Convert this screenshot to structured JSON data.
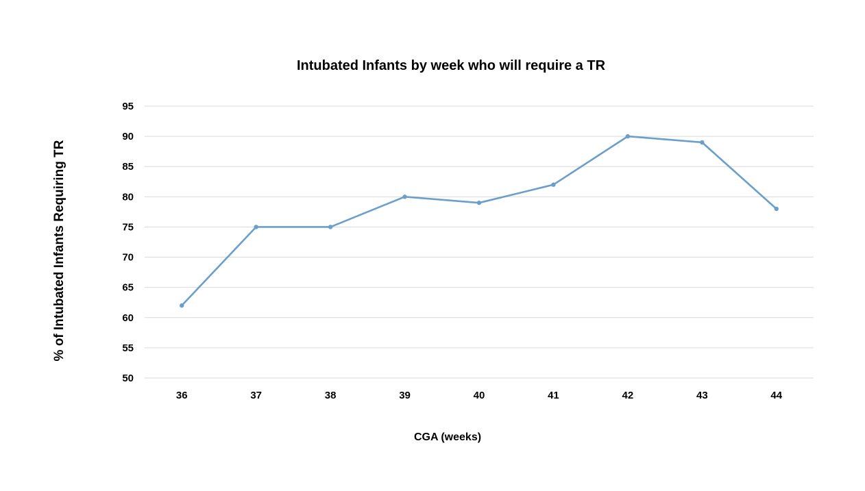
{
  "chart_data": {
    "type": "line",
    "title": "Intubated Infants by week who will require a TR",
    "xlabel": "CGA (weeks)",
    "ylabel": "% of Intubated Infants Requiring TR",
    "categories": [
      "36",
      "37",
      "38",
      "39",
      "40",
      "41",
      "42",
      "43",
      "44"
    ],
    "series": [
      {
        "values": [
          62,
          75,
          75,
          80,
          79,
          82,
          90,
          89,
          78
        ]
      }
    ],
    "ylim": [
      50,
      95
    ],
    "yticks": [
      "50",
      "55",
      "60",
      "65",
      "70",
      "75",
      "80",
      "85",
      "90",
      "95"
    ],
    "grid": true,
    "legend": "none",
    "colors": {
      "series": "#6a9fcb",
      "grid": "#d9d9d9"
    }
  }
}
